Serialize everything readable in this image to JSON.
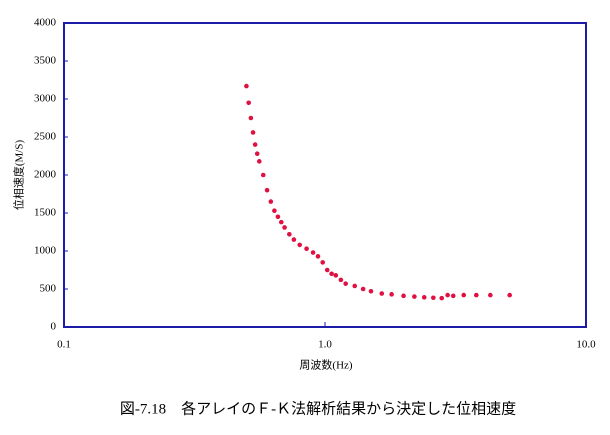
{
  "chart_data": {
    "type": "scatter",
    "xlabel": "周波数(Hz)",
    "ylabel": "位相速度(M/S)",
    "caption": "図-7.18　各アレイのＦ-Ｋ法解析結果から決定した位相速度",
    "xscale": "log",
    "color": "#e01040",
    "xlim": [
      0.1,
      10
    ],
    "xticks": [
      0.1,
      {
        "value": 1,
        "label": "1.0"
      },
      {
        "value": 10,
        "label": "10.0"
      }
    ],
    "ylim": [
      0,
      4000
    ],
    "yticks": [
      0,
      500,
      1000,
      1500,
      2000,
      2500,
      3000,
      3500,
      4000
    ],
    "x": [
      0.5,
      0.51,
      0.52,
      0.53,
      0.54,
      0.55,
      0.56,
      0.58,
      0.6,
      0.62,
      0.64,
      0.66,
      0.68,
      0.7,
      0.73,
      0.76,
      0.8,
      0.85,
      0.9,
      0.94,
      0.98,
      1.02,
      1.06,
      1.1,
      1.15,
      1.2,
      1.3,
      1.4,
      1.5,
      1.65,
      1.8,
      2.0,
      2.2,
      2.4,
      2.6,
      2.8,
      2.95,
      3.1,
      3.4,
      3.8,
      4.3,
      5.1
    ],
    "values": [
      3170,
      2950,
      2750,
      2560,
      2400,
      2280,
      2180,
      2000,
      1800,
      1650,
      1530,
      1450,
      1380,
      1310,
      1220,
      1150,
      1080,
      1030,
      980,
      930,
      850,
      750,
      700,
      680,
      620,
      570,
      540,
      500,
      470,
      440,
      430,
      410,
      400,
      390,
      385,
      380,
      420,
      410,
      420,
      420,
      420,
      420
    ]
  }
}
